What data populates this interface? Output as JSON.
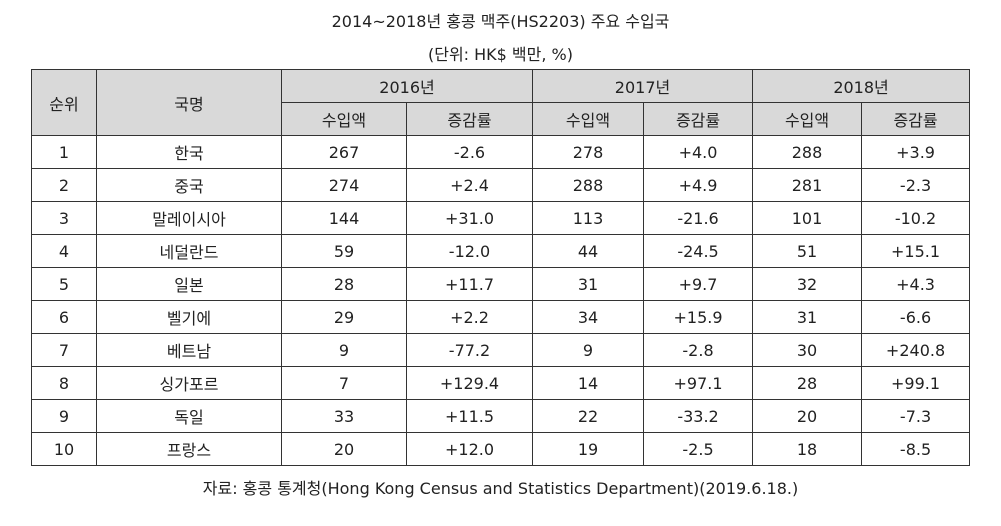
{
  "title": "2014~2018년 홍콩 맥주(HS2203) 주요 수입국",
  "unit": "(단위: HK$ 백만, %)",
  "headers": {
    "rank": "순위",
    "country": "국명",
    "years": [
      "2016년",
      "2017년",
      "2018년"
    ],
    "sub": [
      "수입액",
      "증감률"
    ]
  },
  "rows": [
    {
      "rank": "1",
      "country": "한국",
      "values": [
        "267",
        "-2.6",
        "278",
        "+4.0",
        "288",
        "+3.9"
      ]
    },
    {
      "rank": "2",
      "country": "중국",
      "values": [
        "274",
        "+2.4",
        "288",
        "+4.9",
        "281",
        "-2.3"
      ]
    },
    {
      "rank": "3",
      "country": "말레이시아",
      "values": [
        "144",
        "+31.0",
        "113",
        "-21.6",
        "101",
        "-10.2"
      ]
    },
    {
      "rank": "4",
      "country": "네덜란드",
      "values": [
        "59",
        "-12.0",
        "44",
        "-24.5",
        "51",
        "+15.1"
      ]
    },
    {
      "rank": "5",
      "country": "일본",
      "values": [
        "28",
        "+11.7",
        "31",
        "+9.7",
        "32",
        "+4.3"
      ]
    },
    {
      "rank": "6",
      "country": "벨기에",
      "values": [
        "29",
        "+2.2",
        "34",
        "+15.9",
        "31",
        "-6.6"
      ]
    },
    {
      "rank": "7",
      "country": "베트남",
      "values": [
        "9",
        "-77.2",
        "9",
        "-2.8",
        "30",
        "+240.8"
      ]
    },
    {
      "rank": "8",
      "country": "싱가포르",
      "values": [
        "7",
        "+129.4",
        "14",
        "+97.1",
        "28",
        "+99.1"
      ]
    },
    {
      "rank": "9",
      "country": "독일",
      "values": [
        "33",
        "+11.5",
        "22",
        "-33.2",
        "20",
        "-7.3"
      ]
    },
    {
      "rank": "10",
      "country": "프랑스",
      "values": [
        "20",
        "+12.0",
        "19",
        "-2.5",
        "18",
        "-8.5"
      ]
    }
  ],
  "source": "자료: 홍콩 통계청(Hong Kong Census and Statistics Department)(2019.6.18.)",
  "colors": {
    "header_bg": "#d9d9d9",
    "border": "#333333"
  }
}
